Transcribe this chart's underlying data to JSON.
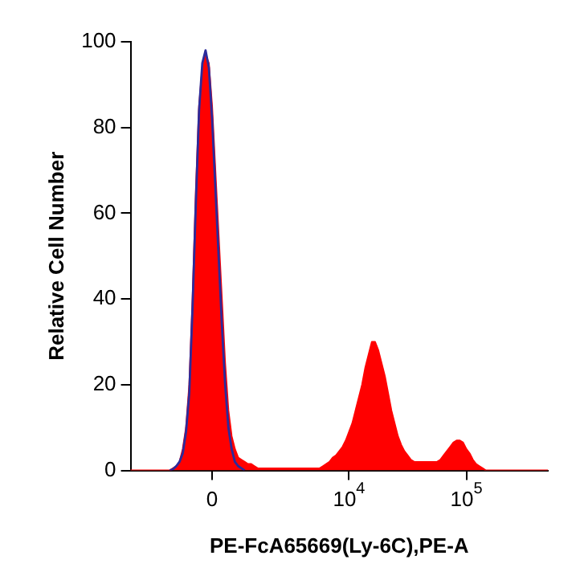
{
  "chart_data": {
    "type": "area",
    "xlabel": "PE-FcA65669(Ly-6C),PE-A",
    "ylabel": "Relative Cell Number",
    "categories": [
      null,
      null,
      null,
      null,
      null,
      null,
      null,
      null,
      null,
      null,
      null,
      null,
      null,
      null,
      null,
      null,
      null,
      null,
      null,
      null,
      null,
      null,
      null,
      null,
      null,
      "0",
      null,
      null,
      null,
      null,
      null,
      null,
      null,
      null,
      null,
      null,
      null,
      null,
      null,
      null,
      null,
      null,
      null,
      null,
      null,
      null,
      null,
      null,
      null,
      null,
      null,
      null,
      null,
      null,
      null,
      null,
      null,
      null,
      null,
      null,
      null,
      null,
      null,
      null,
      null,
      null,
      null,
      "10$^{4}$",
      null,
      null,
      null,
      null,
      null,
      null,
      null,
      null,
      null,
      null,
      null,
      null,
      null,
      null,
      null,
      null,
      null,
      null,
      null,
      null,
      null,
      null,
      null,
      null,
      null,
      null,
      null,
      null,
      null,
      null,
      null,
      null,
      null,
      null,
      null,
      "10$^{5}$",
      null,
      null,
      null,
      null,
      null,
      null,
      null,
      null,
      null,
      null,
      null,
      null,
      null,
      null,
      null,
      null,
      null,
      null,
      null,
      null,
      null,
      null,
      null,
      null,
      null
    ],
    "series": [
      {
        "color": "#ff0000",
        "values": [
          0,
          0,
          0,
          0,
          0,
          0,
          0,
          0,
          0,
          0,
          0,
          0,
          0,
          0.5,
          1,
          2,
          5,
          10,
          20,
          40,
          65,
          85,
          94,
          97,
          95,
          85,
          70,
          55,
          40,
          25,
          14,
          8,
          5,
          3,
          2.5,
          2,
          1.5,
          1.5,
          1,
          0.5,
          0.5,
          0.5,
          0.5,
          0.5,
          0.5,
          0.5,
          0.5,
          0.5,
          0.5,
          0.5,
          0.5,
          0.5,
          0.5,
          0.5,
          0.5,
          0.5,
          0.5,
          0.5,
          0.5,
          1,
          1.5,
          2,
          3,
          3.5,
          4.5,
          5.5,
          7,
          9,
          11,
          14,
          17,
          20,
          24,
          27,
          30,
          30,
          28,
          25,
          22,
          18,
          14,
          11,
          8,
          6,
          4.5,
          3.5,
          2.5,
          2,
          2,
          2,
          2,
          2,
          2,
          2,
          2,
          2.5,
          3.5,
          4.5,
          5.5,
          6.5,
          7,
          7,
          6.5,
          5,
          4,
          2.5,
          1.5,
          1,
          0.5,
          0,
          0,
          0,
          0,
          0,
          0,
          0,
          0,
          0,
          0,
          0,
          0,
          0,
          0,
          0,
          0,
          0,
          0,
          0,
          0
        ]
      },
      {
        "type": "line",
        "color": "#2b2b9b",
        "values": [
          null,
          null,
          null,
          null,
          null,
          null,
          null,
          null,
          null,
          null,
          null,
          null,
          0,
          0.3,
          1,
          2,
          4,
          9,
          18,
          38,
          62,
          84,
          95,
          98,
          94,
          82,
          66,
          50,
          34,
          20,
          10,
          5,
          2,
          1,
          0.5,
          0,
          null,
          null,
          null,
          null,
          null,
          null,
          null,
          null,
          null,
          null,
          null,
          null,
          null,
          null,
          null,
          null,
          null,
          null,
          null,
          null,
          null,
          null,
          null,
          null,
          null,
          null,
          null,
          null,
          null,
          null,
          null,
          null,
          null,
          null,
          null,
          null,
          null,
          null,
          null,
          null,
          null,
          null,
          null,
          null,
          null,
          null,
          null,
          null,
          null,
          null,
          null,
          null,
          null,
          null,
          null,
          null,
          null,
          null,
          null,
          null,
          null,
          null,
          null,
          null,
          null,
          null,
          null,
          null,
          null,
          null,
          null,
          null,
          null,
          null,
          null,
          null,
          null,
          null,
          null,
          null,
          null,
          null,
          null,
          null,
          null,
          null,
          null,
          null,
          null,
          null,
          null,
          null,
          null
        ]
      }
    ],
    "ylim": [
      0,
      100
    ],
    "yticks": [
      0,
      20,
      40,
      60,
      80,
      100
    ],
    "grid": false,
    "legend": false,
    "marker": "none"
  }
}
